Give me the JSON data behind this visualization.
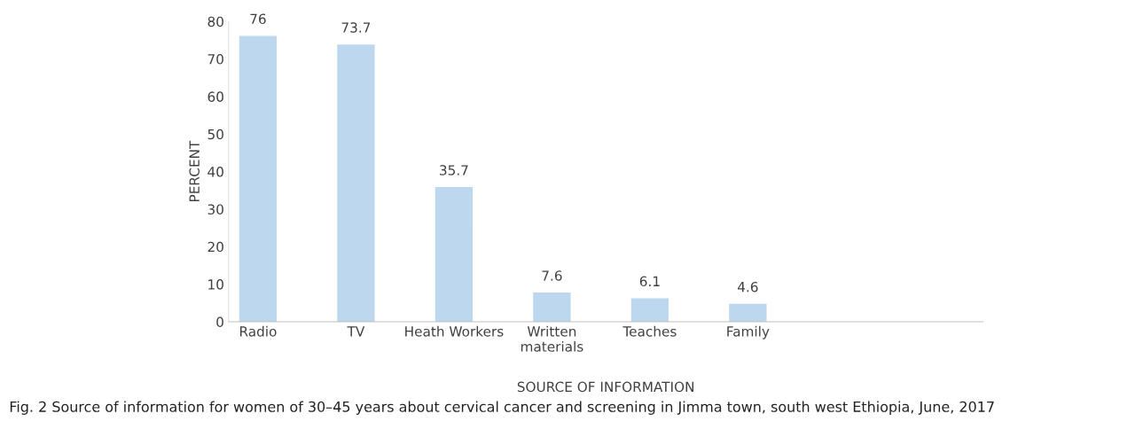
{
  "chart_data": {
    "type": "bar",
    "categories": [
      "Radio",
      "TV",
      "Heath Workers",
      "Written\nmaterials",
      "Teaches",
      "Family"
    ],
    "values": [
      76,
      73.7,
      35.7,
      7.6,
      6.1,
      4.6
    ],
    "color": "#bdd7ee",
    "xlabel": "SOURCE OF INFORMATION",
    "ylabel": "PERCENT",
    "ylim": [
      0,
      80
    ],
    "yticks": [
      0,
      10,
      20,
      30,
      40,
      50,
      60,
      70,
      80
    ],
    "data_labels": true,
    "grid": false,
    "legend": false,
    "annotations": [
      "Fig. 2 Source of information for women of 30–45 years about cervical cancer and screening in Jimma town, south west Ethiopia, June, 2017"
    ]
  }
}
